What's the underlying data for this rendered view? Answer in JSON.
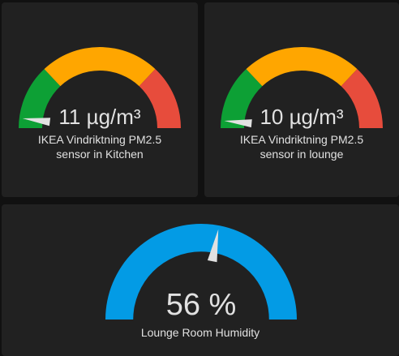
{
  "colors": {
    "background": "#111111",
    "card": "#212121",
    "text": "#e1e1e1",
    "green": "#0da035",
    "yellow": "#ffa600",
    "red": "#e74c3c",
    "blue": "#039be5",
    "needle": "#e1e1e1"
  },
  "cards": [
    {
      "id": "kitchen",
      "value": "11 µg/m³",
      "name_line1": "IKEA Vindriktning PM2.5",
      "name_line2": "sensor in Kitchen",
      "needle_fraction": 0.04,
      "style": "severity"
    },
    {
      "id": "lounge",
      "value": "10 µg/m³",
      "name_line1": "IKEA Vindriktning PM2.5",
      "name_line2": "sensor in lounge",
      "needle_fraction": 0.03,
      "style": "severity"
    },
    {
      "id": "humidity",
      "value": "56 %",
      "name_line1": "Lounge Room Humidity",
      "needle_fraction": 0.56,
      "style": "solid"
    }
  ]
}
